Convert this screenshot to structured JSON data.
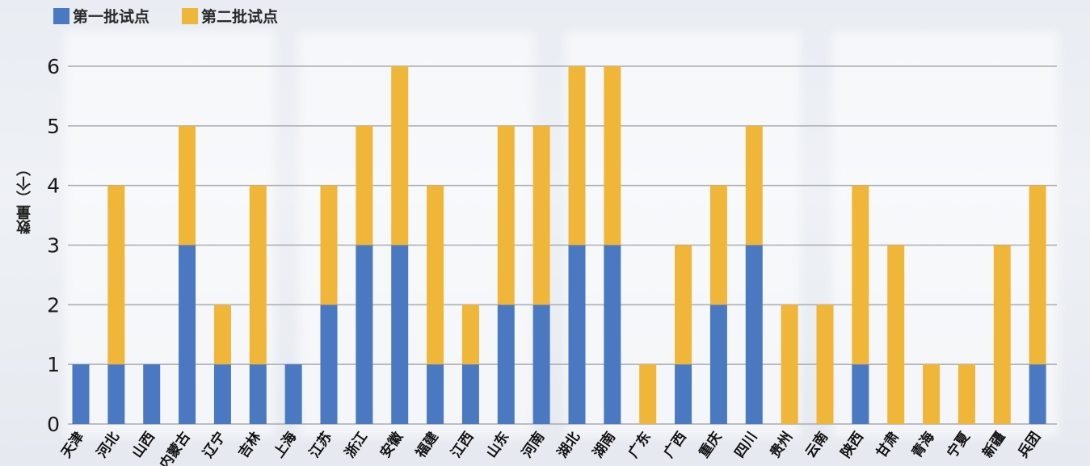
{
  "chart_data": {
    "type": "bar",
    "stacked": true,
    "ylabel": "数量（个）",
    "ylim": [
      0,
      6
    ],
    "yticks": [
      0,
      1,
      2,
      3,
      4,
      5,
      6
    ],
    "grid": true,
    "legend_position": "top-left",
    "categories": [
      "天津",
      "河北",
      "山西",
      "内蒙古",
      "辽宁",
      "吉林",
      "上海",
      "江苏",
      "浙江",
      "安徽",
      "福建",
      "江西",
      "山东",
      "河南",
      "湖北",
      "湖南",
      "广东",
      "广西",
      "重庆",
      "四川",
      "贵州",
      "云南",
      "陕西",
      "甘肃",
      "青海",
      "宁夏",
      "新疆",
      "兵团"
    ],
    "series": [
      {
        "name": "第一批试点",
        "color": "#4a79c2",
        "values": [
          1,
          1,
          1,
          3,
          1,
          1,
          1,
          2,
          3,
          3,
          1,
          1,
          2,
          2,
          3,
          3,
          0,
          1,
          2,
          3,
          0,
          0,
          1,
          0,
          0,
          0,
          0,
          1
        ]
      },
      {
        "name": "第二批试点",
        "color": "#f0b63a",
        "values": [
          0,
          3,
          0,
          2,
          1,
          3,
          0,
          2,
          2,
          3,
          3,
          1,
          3,
          3,
          3,
          3,
          1,
          2,
          2,
          2,
          2,
          2,
          3,
          3,
          1,
          1,
          3,
          3
        ]
      }
    ]
  },
  "colors": {
    "grid": "#a8acb2",
    "axis_text": "#1a1a1a"
  }
}
